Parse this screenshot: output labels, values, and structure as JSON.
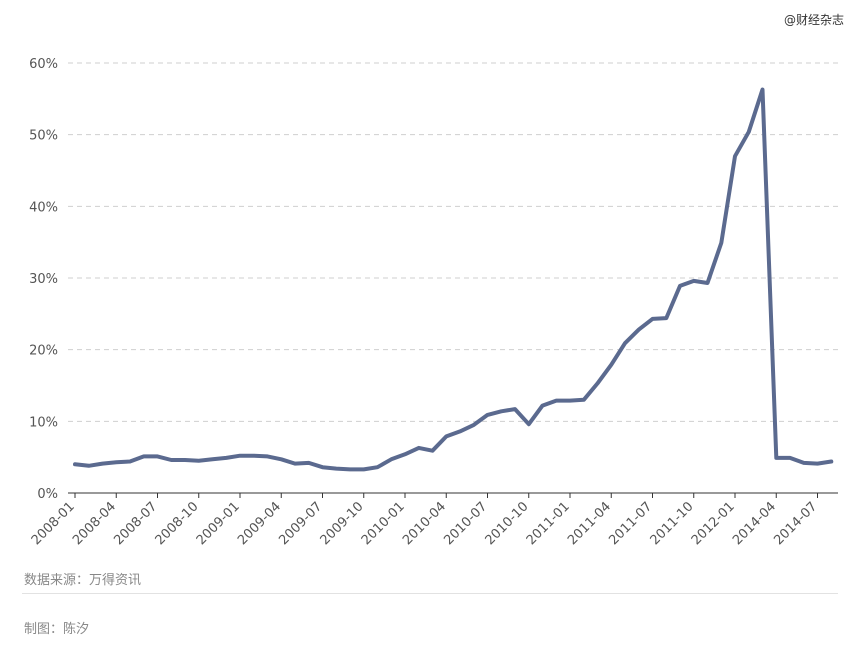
{
  "watermark": "@财经杂志",
  "source": "数据来源：万得资讯",
  "author": "制图：陈汐",
  "chart_data": {
    "type": "line",
    "title": "",
    "xlabel": "",
    "ylabel": "",
    "ylim": [
      0,
      60
    ],
    "yticks": [
      "0%",
      "10%",
      "20%",
      "30%",
      "40%",
      "50%",
      "60%"
    ],
    "ytick_values": [
      0,
      10,
      20,
      30,
      40,
      50,
      60
    ],
    "xticks": [
      "2008-01",
      "2008-04",
      "2008-07",
      "2008-10",
      "2009-01",
      "2009-04",
      "2009-07",
      "2009-10",
      "2010-01",
      "2010-04",
      "2010-07",
      "2010-10",
      "2011-01",
      "2011-04",
      "2011-07",
      "2011-10",
      "2012-01",
      "2014-04",
      "2014-07"
    ],
    "grid": true,
    "color": "#5b6a8f",
    "x": [
      "2008-01",
      "2008-02",
      "2008-03",
      "2008-04",
      "2008-05",
      "2008-06",
      "2008-07",
      "2008-08",
      "2008-09",
      "2008-10",
      "2008-11",
      "2008-12",
      "2009-01",
      "2009-02",
      "2009-03",
      "2009-04",
      "2009-05",
      "2009-06",
      "2009-07",
      "2009-08",
      "2009-09",
      "2009-10",
      "2009-11",
      "2009-12",
      "2010-01",
      "2010-02",
      "2010-03",
      "2010-04",
      "2010-05",
      "2010-06",
      "2010-07",
      "2010-08",
      "2010-09",
      "2010-10",
      "2010-11",
      "2010-12",
      "2011-01",
      "2011-02",
      "2011-03",
      "2011-04",
      "2011-05",
      "2011-06",
      "2011-07",
      "2011-08",
      "2011-09",
      "2011-10",
      "2011-11",
      "2011-12",
      "2012-01",
      "2012-02",
      "2012-03",
      "2014-04",
      "2014-05",
      "2014-06",
      "2014-07",
      "2014-08"
    ],
    "values": [
      4.0,
      3.8,
      4.1,
      4.3,
      4.4,
      5.1,
      5.1,
      4.6,
      4.6,
      4.5,
      4.7,
      4.9,
      5.2,
      5.2,
      5.1,
      4.7,
      4.1,
      4.2,
      3.6,
      3.4,
      3.3,
      3.3,
      3.6,
      4.7,
      5.4,
      6.3,
      5.9,
      7.9,
      8.6,
      9.5,
      10.9,
      11.4,
      11.7,
      9.6,
      12.2,
      12.9,
      12.9,
      13.0,
      15.3,
      17.9,
      20.9,
      22.8,
      24.3,
      24.4,
      28.9,
      29.6,
      29.3,
      34.9,
      47.0,
      50.4,
      56.3,
      4.9,
      4.9,
      4.2,
      4.1,
      4.4
    ]
  }
}
